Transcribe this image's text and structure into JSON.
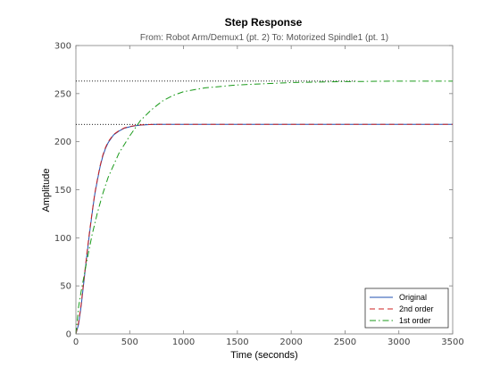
{
  "chart_data": {
    "type": "line",
    "title": "Step Response",
    "subtitle": "From: Robot Arm/Demux1 (pt. 2)  To: Motorized  Spindle1 (pt. 1)",
    "xlabel": "Time (seconds)",
    "ylabel": "Amplitude",
    "xlim": [
      0,
      3500
    ],
    "ylim": [
      0,
      300
    ],
    "xticks": [
      0,
      500,
      1000,
      1500,
      2000,
      2500,
      3000,
      3500
    ],
    "yticks": [
      0,
      50,
      100,
      150,
      200,
      250,
      300
    ],
    "grid": false,
    "legend_position": "bottom-right",
    "reference_lines": [
      {
        "y": 218,
        "x_start": 0,
        "x_end": 800,
        "style": "dotted",
        "color": "#000000"
      },
      {
        "y": 263,
        "x_start": 0,
        "x_end": 2600,
        "style": "dotted",
        "color": "#000000"
      }
    ],
    "series": [
      {
        "name": "Original",
        "color": "#1f4fb0",
        "dash": "solid",
        "x": [
          0,
          25,
          50,
          75,
          100,
          125,
          150,
          175,
          200,
          225,
          250,
          275,
          300,
          350,
          400,
          450,
          500,
          550,
          600,
          650,
          700,
          750,
          800,
          1000,
          1500,
          2000,
          2500,
          3000,
          3500
        ],
        "y": [
          0,
          10,
          30,
          55,
          80,
          103,
          125,
          145,
          160,
          174,
          185,
          193,
          199,
          207,
          211,
          214,
          215.5,
          216.5,
          217.2,
          217.6,
          217.9,
          218,
          218,
          218,
          218,
          218,
          218,
          218,
          218
        ]
      },
      {
        "name": "2nd order",
        "color": "#cc2222",
        "dash": "dashed",
        "x": [
          0,
          25,
          50,
          75,
          100,
          125,
          150,
          175,
          200,
          225,
          250,
          275,
          300,
          350,
          400,
          450,
          500,
          550,
          600,
          650,
          700,
          750,
          800,
          1000,
          1500,
          2000,
          2500,
          3000,
          3500
        ],
        "y": [
          0,
          12,
          32,
          57,
          82,
          105,
          126,
          146,
          161,
          175,
          186,
          194,
          200,
          207.5,
          211.5,
          214.3,
          215.8,
          216.8,
          217.4,
          217.7,
          217.9,
          218,
          218,
          218,
          218,
          218,
          218,
          218,
          218
        ]
      },
      {
        "name": "1st order",
        "color": "#1a9a1a",
        "dash": "dashdot",
        "x": [
          0,
          25,
          50,
          100,
          150,
          200,
          250,
          300,
          400,
          500,
          600,
          700,
          800,
          900,
          1000,
          1200,
          1500,
          2000,
          2500,
          3000,
          3500
        ],
        "y": [
          0,
          28,
          45,
          75,
          103,
          126,
          146,
          163,
          188,
          206,
          222,
          233,
          242,
          248,
          252,
          256,
          259,
          261.5,
          262.5,
          263,
          263
        ]
      }
    ]
  }
}
